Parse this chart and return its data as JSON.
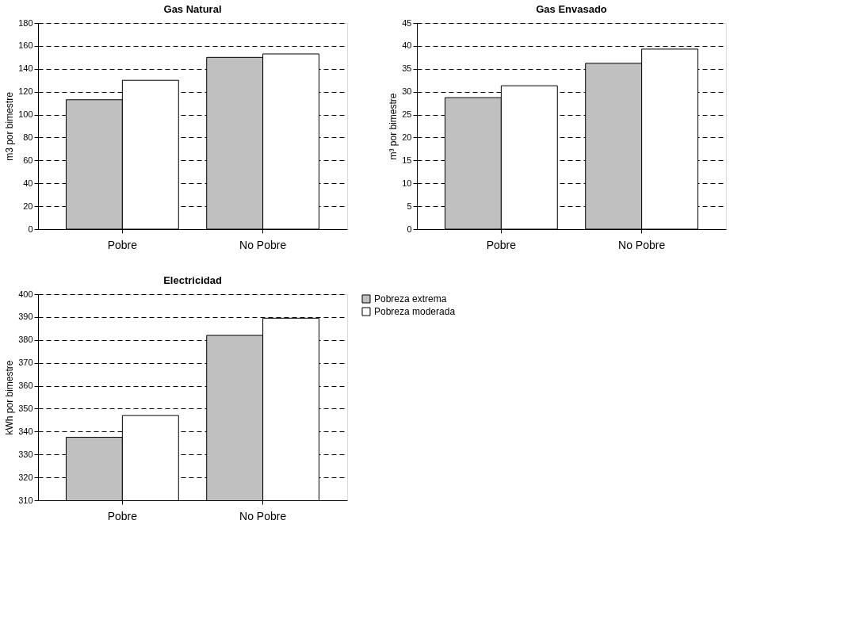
{
  "chart_data": [
    {
      "type": "bar",
      "title": "Gas Natural",
      "ylabel": "m3 por bimestre",
      "categories": [
        "Pobre",
        "No Pobre"
      ],
      "series": [
        {
          "color": "#c0c0c0",
          "values": [
            113,
            150
          ]
        },
        {
          "color": "#ffffff",
          "values": [
            130,
            153
          ]
        }
      ],
      "ylim": [
        0,
        180
      ],
      "yticks": [
        0,
        20,
        40,
        60,
        80,
        100,
        120,
        140,
        160,
        180
      ],
      "grid": "y"
    },
    {
      "type": "bar",
      "title": "Gas Envasado",
      "ylabel": "m³ por bimestre",
      "categories": [
        "Pobre",
        "No Pobre"
      ],
      "series": [
        {
          "color": "#c0c0c0",
          "values": [
            28.7,
            36.2
          ]
        },
        {
          "color": "#ffffff",
          "values": [
            31.3,
            39.3
          ]
        }
      ],
      "ylim": [
        0,
        45
      ],
      "yticks": [
        0,
        5,
        10,
        15,
        20,
        25,
        30,
        35,
        40,
        45
      ],
      "grid": "y"
    },
    {
      "type": "bar",
      "title": "Electricidad",
      "ylabel": "kWh por bimestre",
      "categories": [
        "Pobre",
        "No Pobre"
      ],
      "series": [
        {
          "name": "Pobreza extrema",
          "color": "#c0c0c0",
          "values": [
            337.5,
            382
          ]
        },
        {
          "name": "Pobreza moderada",
          "color": "#ffffff",
          "values": [
            347,
            389.5
          ]
        }
      ],
      "ylim": [
        310,
        400
      ],
      "yticks": [
        310,
        320,
        330,
        340,
        350,
        360,
        370,
        380,
        390,
        400
      ],
      "grid": "y",
      "legend": "right"
    }
  ]
}
